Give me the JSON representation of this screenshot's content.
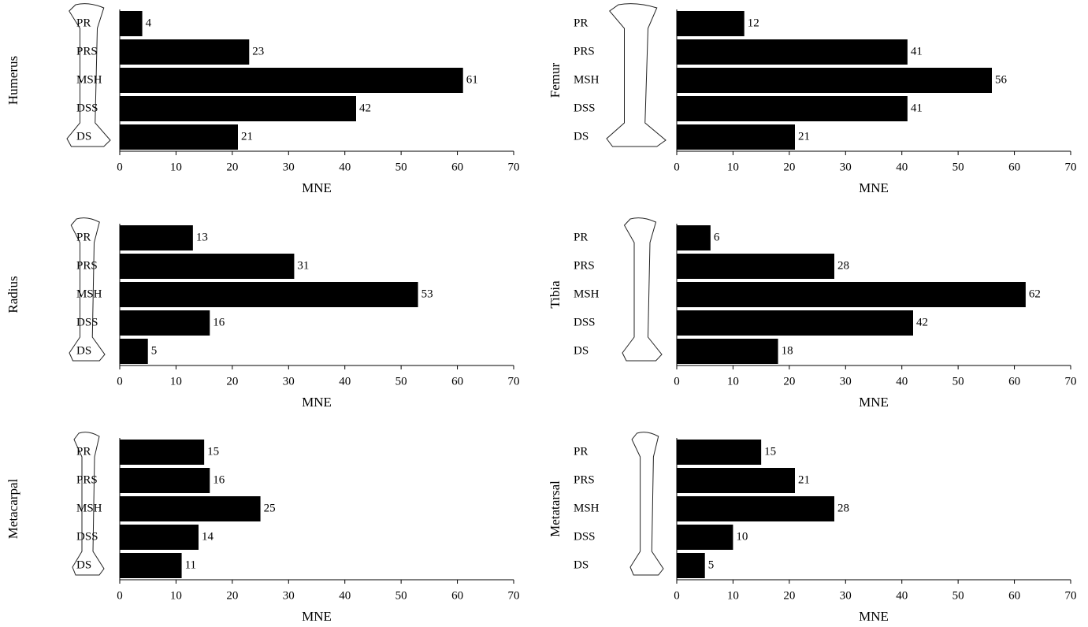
{
  "chart_data": [
    {
      "type": "bar",
      "orientation": "horizontal",
      "ylabel": "Humerus",
      "xlabel": "MNE",
      "categories": [
        "PR",
        "PRS",
        "MSH",
        "DSS",
        "DS"
      ],
      "values": [
        4,
        23,
        61,
        42,
        21
      ],
      "color": "#000000",
      "xlim": [
        0,
        70
      ],
      "xticks": [
        0,
        10,
        20,
        30,
        40,
        50,
        60,
        70
      ]
    },
    {
      "type": "bar",
      "orientation": "horizontal",
      "ylabel": "Femur",
      "xlabel": "MNE",
      "categories": [
        "PR",
        "PRS",
        "MSH",
        "DSS",
        "DS"
      ],
      "values": [
        12,
        41,
        56,
        41,
        21
      ],
      "color": "#000000",
      "xlim": [
        0,
        70
      ],
      "xticks": [
        0,
        10,
        20,
        30,
        40,
        50,
        60,
        70
      ]
    },
    {
      "type": "bar",
      "orientation": "horizontal",
      "ylabel": "Radius",
      "xlabel": "MNE",
      "categories": [
        "PR",
        "PRS",
        "MSH",
        "DSS",
        "DS"
      ],
      "values": [
        13,
        31,
        53,
        16,
        5
      ],
      "color": "#000000",
      "xlim": [
        0,
        70
      ],
      "xticks": [
        0,
        10,
        20,
        30,
        40,
        50,
        60,
        70
      ]
    },
    {
      "type": "bar",
      "orientation": "horizontal",
      "ylabel": "Tibia",
      "xlabel": "MNE",
      "categories": [
        "PR",
        "PRS",
        "MSH",
        "DSS",
        "DS"
      ],
      "values": [
        6,
        28,
        62,
        42,
        18
      ],
      "color": "#000000",
      "xlim": [
        0,
        70
      ],
      "xticks": [
        0,
        10,
        20,
        30,
        40,
        50,
        60,
        70
      ]
    },
    {
      "type": "bar",
      "orientation": "horizontal",
      "ylabel": "Metacarpal",
      "xlabel": "MNE",
      "categories": [
        "PR",
        "PRS",
        "MSH",
        "DSS",
        "DS"
      ],
      "values": [
        15,
        16,
        25,
        14,
        11
      ],
      "color": "#000000",
      "xlim": [
        0,
        70
      ],
      "xticks": [
        0,
        10,
        20,
        30,
        40,
        50,
        60,
        70
      ]
    },
    {
      "type": "bar",
      "orientation": "horizontal",
      "ylabel": "Metatarsal",
      "xlabel": "MNE",
      "categories": [
        "PR",
        "PRS",
        "MSH",
        "DSS",
        "DS"
      ],
      "values": [
        15,
        21,
        28,
        10,
        5
      ],
      "color": "#000000",
      "xlim": [
        0,
        70
      ],
      "xticks": [
        0,
        10,
        20,
        30,
        40,
        50,
        60,
        70
      ]
    }
  ]
}
